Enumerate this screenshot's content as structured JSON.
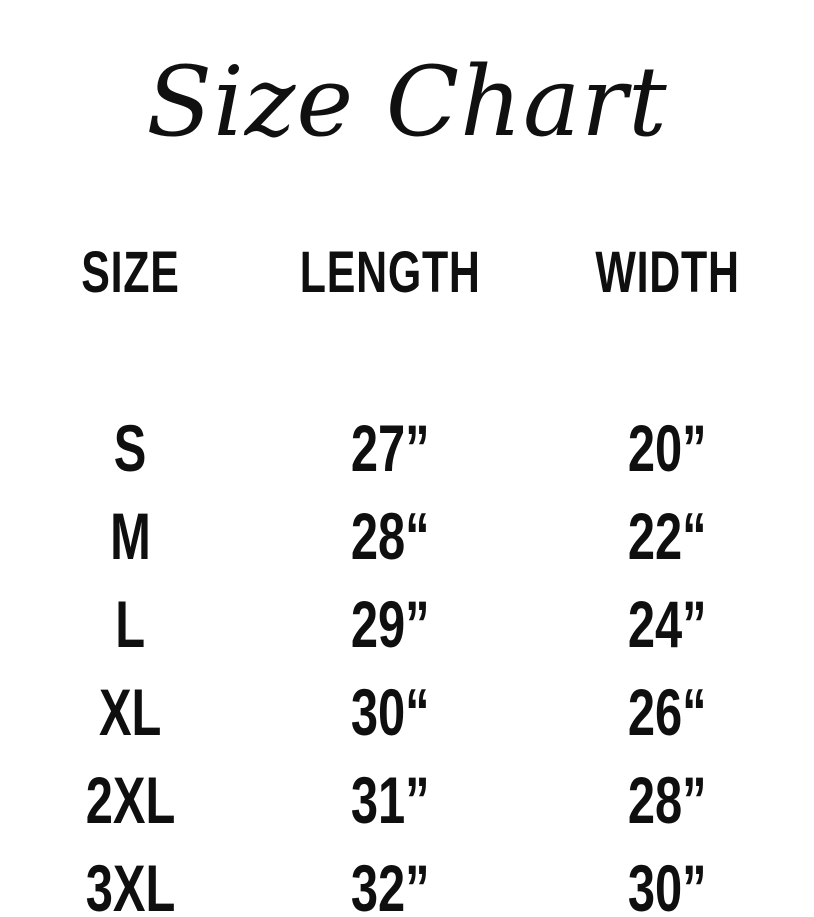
{
  "title": "Size Chart",
  "colors": {
    "background": "#ffffff",
    "text": "#0f0f0f"
  },
  "chart_data": {
    "type": "table",
    "title": "Size Chart",
    "columns": [
      "SIZE",
      "LENGTH",
      "WIDTH"
    ],
    "rows": [
      [
        "S",
        "27”",
        "20”"
      ],
      [
        "M",
        "28“",
        "22“"
      ],
      [
        "L",
        "29”",
        "24”"
      ],
      [
        "XL",
        "30“",
        "26“"
      ],
      [
        "2XL",
        "31”",
        "28”"
      ],
      [
        "3XL",
        "32”",
        "30”"
      ]
    ],
    "length_inches": [
      27,
      28,
      29,
      30,
      31,
      32
    ],
    "width_inches": [
      20,
      22,
      24,
      26,
      28,
      30
    ]
  }
}
